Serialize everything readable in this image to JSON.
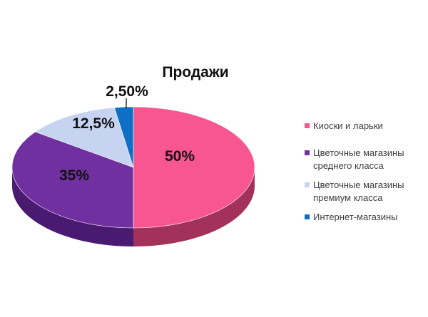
{
  "chart_data": {
    "type": "pie",
    "title": "Продажи",
    "categories": [
      "Киоски и ларьки",
      "Цветочные магазины среднего класса",
      "Цветочные магазины премиум класса",
      "Интернет-магазины"
    ],
    "values": [
      50,
      35,
      12.5,
      2.5
    ],
    "data_labels": [
      "50%",
      "35%",
      "12,5%",
      "2,50%"
    ],
    "colors": [
      "#f7568f",
      "#7030a0",
      "#c6d4f2",
      "#0f6fc6"
    ],
    "side_colors": [
      "#a3325a",
      "#4a1a70",
      "#8a97b5",
      "#084f8e"
    ],
    "legend_position": "right",
    "style": "3d-pie"
  }
}
